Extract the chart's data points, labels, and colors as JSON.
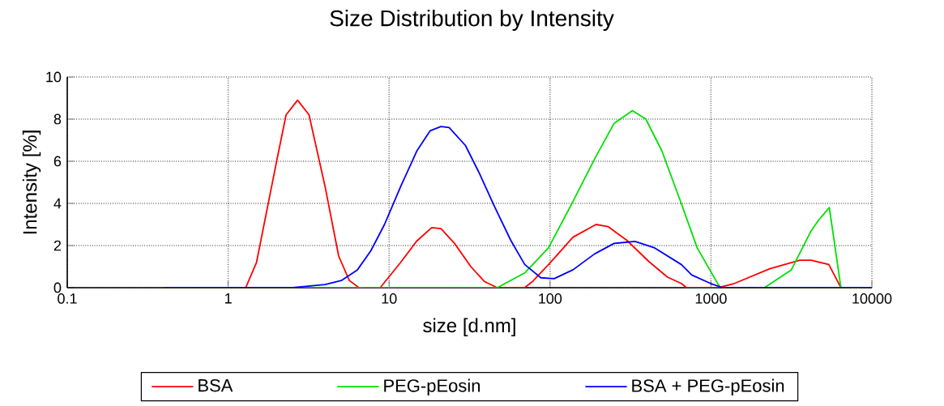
{
  "chart_data": {
    "type": "line",
    "title": "Size Distribution by Intensity",
    "xlabel": "size [d.nm]",
    "ylabel": "Intensity [%]",
    "log": "x",
    "xlim": [
      0.1,
      10000
    ],
    "xticks": [
      0.1,
      1,
      10,
      100,
      1000,
      10000
    ],
    "ylim": [
      0,
      10
    ],
    "yticks": [
      0,
      2,
      4,
      6,
      8,
      10
    ],
    "grid": true,
    "legend": "bottom",
    "series": [
      {
        "name": "BSA",
        "color": "#ff0000",
        "x": [
          0.4,
          1.285,
          1.5,
          2.0,
          2.29,
          2.7,
          3.18,
          4.0,
          4.86,
          5.66,
          6.49,
          8.8,
          11.8,
          14.8,
          18.4,
          21.0,
          25.5,
          32.2,
          39.0,
          47,
          69.6,
          78,
          98,
          139,
          193,
          229,
          300,
          410,
          537,
          654,
          705,
          1110,
          1400,
          2320,
          3560,
          4200,
          5400,
          6420,
          10000
        ],
        "values": [
          0,
          0,
          1.2,
          6.0,
          8.2,
          8.9,
          8.2,
          4.8,
          1.5,
          0.34,
          0,
          0,
          1.2,
          2.2,
          2.85,
          2.8,
          2.1,
          1.0,
          0.3,
          0,
          0,
          0.3,
          1.1,
          2.4,
          3.0,
          2.9,
          2.25,
          1.25,
          0.5,
          0.2,
          0,
          0,
          0.2,
          0.9,
          1.3,
          1.3,
          1.1,
          0,
          0
        ]
      },
      {
        "name": "PEG-pEosin",
        "color": "#00e000",
        "x": [
          2.5,
          47,
          69.6,
          98,
          139,
          189,
          250,
          325,
          394,
          495,
          654,
          820,
          1110,
          1150,
          2150,
          3160,
          4160,
          4660,
          5440,
          6420,
          10000
        ],
        "values": [
          0,
          0,
          0.7,
          1.9,
          4.1,
          6.1,
          7.8,
          8.4,
          8.0,
          6.5,
          4.0,
          1.9,
          0.15,
          0,
          0,
          0.85,
          2.65,
          3.2,
          3.8,
          0,
          0
        ]
      },
      {
        "name": "BSA + PEG-pEosin",
        "color": "#0000ff",
        "x": [
          0.4,
          2.52,
          4.0,
          5.05,
          6.36,
          7.7,
          9.36,
          11.8,
          14.9,
          18.0,
          21.0,
          23.6,
          29.8,
          36,
          45.5,
          57,
          69.6,
          87.7,
          106,
          139,
          189,
          250,
          337,
          443,
          654,
          760,
          995,
          1180,
          10000
        ],
        "values": [
          0,
          0,
          0.15,
          0.34,
          0.85,
          1.75,
          3.0,
          4.8,
          6.5,
          7.45,
          7.65,
          7.6,
          6.75,
          5.5,
          3.8,
          2.25,
          1.1,
          0.47,
          0.43,
          0.85,
          1.6,
          2.1,
          2.2,
          1.9,
          1.1,
          0.6,
          0.2,
          0,
          0
        ]
      }
    ]
  }
}
